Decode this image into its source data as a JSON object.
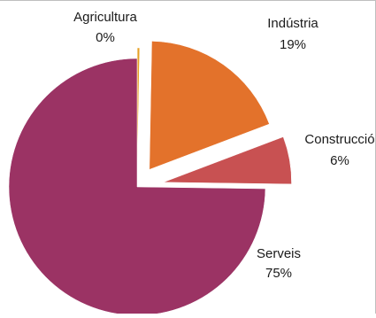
{
  "chart_data": {
    "type": "pie",
    "title": "",
    "categories": [
      "Agricultura",
      "Indústria",
      "Construcció",
      "Serveis"
    ],
    "values": [
      0.3,
      19,
      6,
      75
    ],
    "data_labels": [
      "0%",
      "19%",
      "6%",
      "75%"
    ],
    "colors": [
      "#E6A024",
      "#E3722B",
      "#C85152",
      "#9B3364"
    ],
    "exploded": true,
    "legend": "none"
  }
}
